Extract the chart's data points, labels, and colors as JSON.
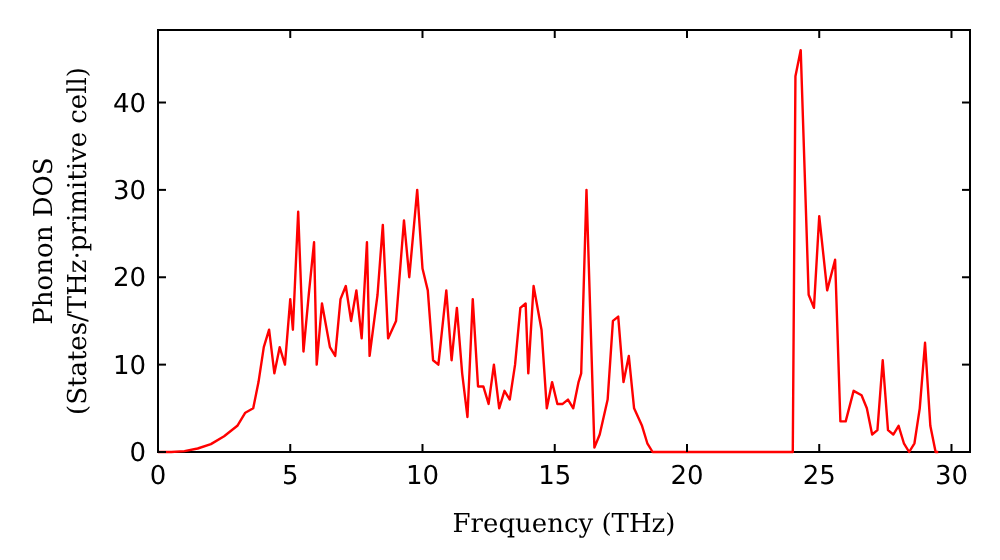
{
  "chart_data": {
    "type": "line",
    "xlabel": "Frequency (THz)",
    "ylabel": "Phonon DOS\n(States/THz·primitive cell)",
    "xlim": [
      0,
      30.7
    ],
    "ylim": [
      0,
      48.3
    ],
    "xticks": [
      0,
      5,
      10,
      15,
      20,
      25,
      30
    ],
    "yticks": [
      0,
      10,
      20,
      30,
      40
    ],
    "grid": false,
    "series": [
      {
        "color": "#ff0000",
        "x": [
          0,
          0.5,
          1,
          1.5,
          2,
          2.5,
          3,
          3.3,
          3.6,
          3.8,
          4,
          4.2,
          4.4,
          4.6,
          4.8,
          5.0,
          5.1,
          5.3,
          5.5,
          5.7,
          5.9,
          6.0,
          6.2,
          6.5,
          6.7,
          6.9,
          7.1,
          7.3,
          7.5,
          7.7,
          7.9,
          8.0,
          8.3,
          8.5,
          8.7,
          9.0,
          9.3,
          9.5,
          9.8,
          10.0,
          10.2,
          10.4,
          10.6,
          10.9,
          11.1,
          11.3,
          11.5,
          11.7,
          11.9,
          12.1,
          12.3,
          12.5,
          12.7,
          12.9,
          13.1,
          13.3,
          13.5,
          13.7,
          13.9,
          14.0,
          14.2,
          14.5,
          14.7,
          14.9,
          15.1,
          15.3,
          15.5,
          15.7,
          15.9,
          16.0,
          16.2,
          16.5,
          16.7,
          17.0,
          17.2,
          17.4,
          17.6,
          17.8,
          18.0,
          18.3,
          18.5,
          18.7,
          24.0,
          24.1,
          24.3,
          24.6,
          24.8,
          25.0,
          25.3,
          25.6,
          25.8,
          26.0,
          26.3,
          26.6,
          26.8,
          27.0,
          27.2,
          27.4,
          27.6,
          27.8,
          28.0,
          28.2,
          28.4,
          28.6,
          28.8,
          29.0,
          29.2,
          29.4,
          29.5
        ],
        "values": [
          0,
          0,
          0.1,
          0.4,
          0.9,
          1.8,
          3,
          4.5,
          5,
          8,
          12,
          14,
          9,
          12,
          10,
          17.5,
          14,
          27.5,
          11.5,
          18,
          24,
          10,
          17,
          12,
          11,
          17.5,
          19,
          15,
          18.5,
          13,
          24,
          11,
          18,
          26,
          13,
          15,
          26.5,
          20,
          30,
          21,
          18.5,
          10.5,
          10,
          18.5,
          10.5,
          16.5,
          9,
          4,
          17.5,
          7.5,
          7.5,
          5.5,
          10,
          5,
          7,
          6,
          10,
          16.5,
          17,
          9,
          19,
          14,
          5,
          8,
          5.5,
          5.5,
          6,
          5,
          8,
          9,
          30,
          0.5,
          2,
          6,
          15,
          15.5,
          8,
          11,
          5,
          3,
          1,
          0,
          0,
          43,
          46,
          18,
          16.5,
          27,
          18.5,
          22,
          3.5,
          3.5,
          7,
          6.5,
          5,
          2,
          2.5,
          10.5,
          2.5,
          2,
          3,
          1,
          0,
          1,
          5,
          12.5,
          3,
          0,
          0
        ]
      }
    ]
  }
}
